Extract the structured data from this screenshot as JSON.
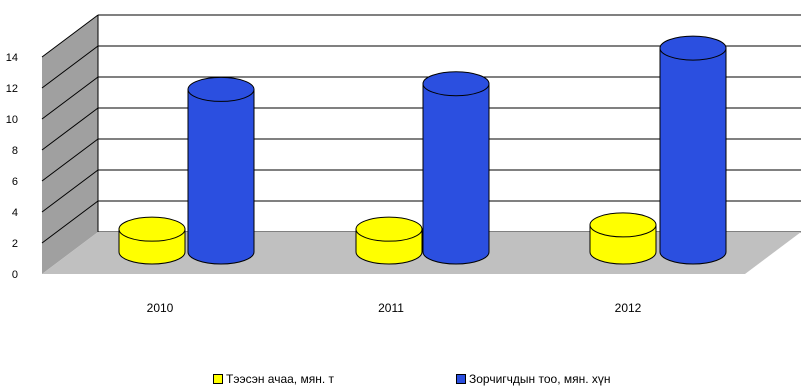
{
  "chart_data": {
    "type": "bar",
    "style": "3d-cylinder",
    "categories": [
      "2010",
      "2011",
      "2012"
    ],
    "ylim": [
      0,
      14
    ],
    "yticks": [
      "0",
      "2",
      "4",
      "6",
      "8",
      "10",
      "12",
      "14"
    ],
    "grid": true,
    "legend_position": "bottom",
    "series": [
      {
        "name": "Тээсэн ачаа, мян. т",
        "values": [
          1.6,
          1.6,
          1.9
        ],
        "color": "#ffff00"
      },
      {
        "name": "Зорчигчдын тоо, мян. хүн",
        "values": [
          11.4,
          11.8,
          14.3
        ],
        "color": "#2b4fe0"
      }
    ],
    "colors": {
      "floor": "#c0c0c0",
      "wall": "#a0a0a0",
      "grid": "#000000"
    }
  }
}
